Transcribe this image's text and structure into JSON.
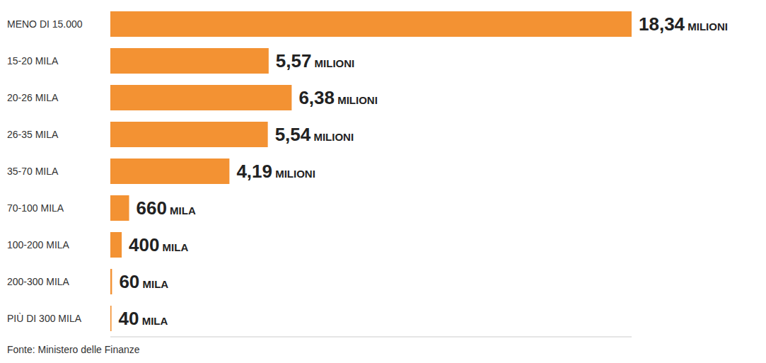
{
  "chart_data": {
    "type": "bar",
    "orientation": "horizontal",
    "categories": [
      "MENO DI 15.000",
      "15-20 MILA",
      "20-26 MILA",
      "26-35 MILA",
      "35-70 MILA",
      "70-100 MILA",
      "100-200 MILA",
      "200-300 MILA",
      "PIÙ DI 300 MILA"
    ],
    "values": [
      18340000,
      5570000,
      6380000,
      5540000,
      4190000,
      660000,
      400000,
      60000,
      40000
    ],
    "value_labels": [
      "18,34 MILIONI",
      "5,57 MILIONI",
      "6,38 MILIONI",
      "5,54 MILIONI",
      "4,19 MILIONI",
      "660 MILA",
      "400 MILA",
      "60 MILA",
      "40 MILA"
    ],
    "data_labels": true,
    "tick_labels": "y",
    "color": "#f39233",
    "xlim": [
      0,
      18340000
    ],
    "source": "Fonte: Ministero delle Finanze"
  }
}
